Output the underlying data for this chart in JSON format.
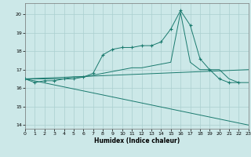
{
  "xlabel": "Humidex (Indice chaleur)",
  "bg_color": "#cce8e8",
  "grid_color": "#aacfcf",
  "line_color": "#1a7a6e",
  "xlim": [
    0,
    23
  ],
  "ylim": [
    13.8,
    20.6
  ],
  "xticks": [
    0,
    1,
    2,
    3,
    4,
    5,
    6,
    7,
    8,
    9,
    10,
    11,
    12,
    13,
    14,
    15,
    16,
    17,
    18,
    19,
    20,
    21,
    22,
    23
  ],
  "yticks": [
    14,
    15,
    16,
    17,
    18,
    19,
    20
  ],
  "line1_x": [
    0,
    1,
    2,
    3,
    4,
    5,
    6,
    7,
    8,
    9,
    10,
    11,
    12,
    13,
    14,
    15,
    16,
    17,
    18,
    19,
    20,
    21,
    22
  ],
  "line1_y": [
    16.5,
    16.3,
    16.4,
    16.4,
    16.5,
    16.5,
    16.6,
    16.8,
    17.8,
    18.1,
    18.2,
    18.2,
    18.3,
    18.3,
    18.5,
    19.2,
    20.2,
    19.4,
    17.6,
    17.0,
    16.5,
    16.3,
    16.3
  ],
  "line2_x": [
    0,
    1,
    2,
    3,
    4,
    5,
    6,
    7,
    8,
    9,
    10,
    11,
    12,
    13,
    14,
    15,
    16,
    17,
    18,
    19,
    20,
    21,
    22,
    23
  ],
  "line2_y": [
    16.5,
    16.5,
    16.5,
    16.5,
    16.5,
    16.6,
    16.6,
    16.7,
    16.8,
    16.9,
    17.0,
    17.1,
    17.1,
    17.2,
    17.3,
    17.4,
    20.1,
    17.4,
    17.0,
    17.0,
    17.0,
    16.5,
    16.3,
    16.3
  ],
  "line3_x": [
    0,
    23
  ],
  "line3_y": [
    16.5,
    17.0
  ],
  "line4_x": [
    0,
    23
  ],
  "line4_y": [
    16.5,
    14.0
  ]
}
